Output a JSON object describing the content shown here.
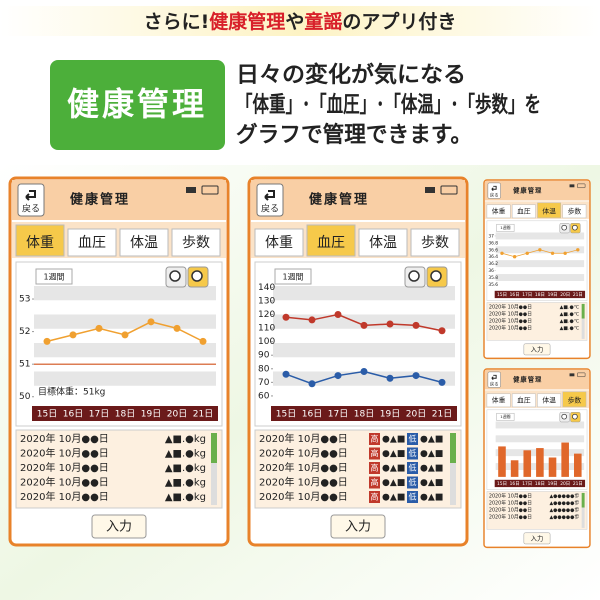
{
  "banner": {
    "segments": [
      "さらに!",
      "健康管理",
      "や",
      "童謡",
      "のアプリ付き"
    ]
  },
  "feature": {
    "badge": "健康管理",
    "lines": [
      "日々の変化が気になる",
      "「体重」･「血圧」･「体温」･「歩数」を",
      "グラフで管理できます。"
    ]
  },
  "screens": [
    {
      "back": "戻る",
      "title": "健康管理",
      "tabs": [
        "体重",
        "血圧",
        "体温",
        "歩数"
      ],
      "active_tab": 0,
      "period": "1週間",
      "chart": {
        "type": "line",
        "ylim": [
          49.9,
          53.4
        ],
        "yticks": [
          50,
          51,
          52,
          53
        ],
        "days": [
          "15日",
          "16日",
          "17日",
          "18日",
          "19日",
          "20日",
          "21日"
        ],
        "series": [
          {
            "color": "#f0a030",
            "values": [
              51.7,
              51.9,
              52.1,
              51.9,
              52.3,
              52.1,
              51.7
            ]
          }
        ],
        "target": {
          "value": 51,
          "color": "#d0501a",
          "label": "目標体重：51kg"
        }
      },
      "records": [
        [
          "2020年 10月●●日",
          "▲■.●kg"
        ],
        [
          "2020年 10月●●日",
          "▲■.●kg"
        ],
        [
          "2020年 10月●●日",
          "▲■.●kg"
        ],
        [
          "2020年 10月●●日",
          "▲■.●kg"
        ],
        [
          "2020年 10月●●日",
          "▲■.●kg"
        ]
      ],
      "input": "入力"
    },
    {
      "back": "戻る",
      "title": "健康管理",
      "tabs": [
        "体重",
        "血圧",
        "体温",
        "歩数"
      ],
      "active_tab": 1,
      "period": "1週間",
      "chart": {
        "type": "line",
        "ylim": [
          57,
          141
        ],
        "yticks": [
          60,
          70,
          80,
          90,
          100,
          110,
          120,
          130,
          140
        ],
        "days": [
          "15日",
          "16日",
          "17日",
          "18日",
          "19日",
          "20日",
          "21日"
        ],
        "series": [
          {
            "color": "#c0392b",
            "values": [
              118,
              116,
              120,
              112,
              113,
              112,
              108
            ]
          },
          {
            "color": "#2a5ca8",
            "values": [
              76,
              69,
              75,
              78,
              73,
              75,
              70
            ]
          }
        ]
      },
      "records": [
        [
          "2020年 10月●●日",
          "高",
          "●▲■",
          "低",
          "●▲■"
        ],
        [
          "2020年 10月●●日",
          "高",
          "●▲■",
          "低",
          "●▲■"
        ],
        [
          "2020年 10月●●日",
          "高",
          "●▲■",
          "低",
          "●▲■"
        ],
        [
          "2020年 10月●●日",
          "高",
          "●▲■",
          "低",
          "●▲■"
        ],
        [
          "2020年 10月●●日",
          "高",
          "●▲■",
          "低",
          "●▲■"
        ]
      ],
      "input": "入力"
    },
    {
      "back": "戻る",
      "title": "健康管理",
      "tabs": [
        "体重",
        "血圧",
        "体温",
        "歩数"
      ],
      "active_tab": 2,
      "period": "1週間",
      "chart": {
        "type": "line",
        "ylim": [
          35.5,
          37.1
        ],
        "yticks": [
          35.6,
          35.8,
          36.0,
          36.2,
          36.4,
          36.6,
          36.8,
          37.0
        ],
        "days": [
          "15日",
          "16日",
          "17日",
          "18日",
          "19日",
          "20日",
          "21日"
        ],
        "series": [
          {
            "color": "#f0a030",
            "values": [
              36.5,
              36.4,
              36.5,
              36.6,
              36.5,
              36.5,
              36.6
            ]
          }
        ]
      },
      "records": [
        [
          "2020年 10月●●日",
          "▲■.●℃"
        ],
        [
          "2020年 10月●●日",
          "▲■.●℃"
        ],
        [
          "2020年 10月●●日",
          "▲■.●℃"
        ],
        [
          "2020年 10月●●日",
          "▲■.●℃"
        ]
      ],
      "input": "入力"
    },
    {
      "back": "戻る",
      "title": "健康管理",
      "tabs": [
        "体重",
        "血圧",
        "体温",
        "歩数"
      ],
      "active_tab": 3,
      "period": "1週間",
      "chart": {
        "type": "bar",
        "ylim": [
          0,
          100
        ],
        "days": [
          "15日",
          "16日",
          "17日",
          "18日",
          "19日",
          "20日",
          "21日"
        ],
        "series": [
          {
            "color": "#e0672a",
            "values": [
              55,
              30,
              48,
              52,
              35,
              62,
              42
            ]
          }
        ]
      },
      "records": [
        [
          "2020年 10月●●日",
          "▲●●●●●歩"
        ],
        [
          "2020年 10月●●日",
          "▲●●●●●歩"
        ],
        [
          "2020年 10月●●日",
          "▲●●●●●歩"
        ],
        [
          "2020年 10月●●日",
          "▲●●●●●歩"
        ]
      ],
      "input": "入力"
    }
  ]
}
